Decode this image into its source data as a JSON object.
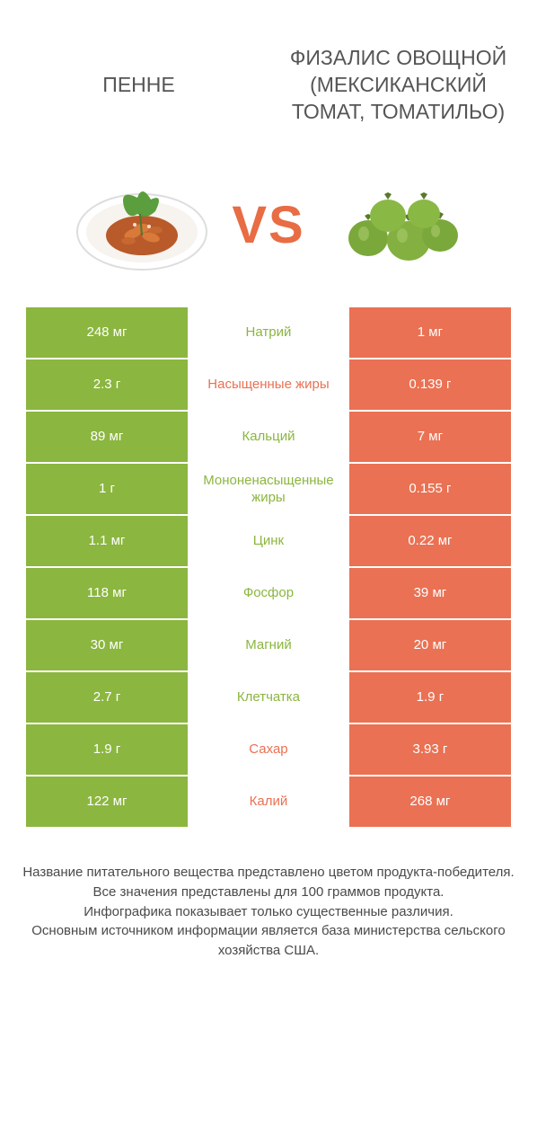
{
  "colors": {
    "left_bg": "#8bb63f",
    "right_bg": "#ea7153",
    "left_text": "#ffffff",
    "right_text": "#ffffff",
    "mid_left_color": "#8bb63f",
    "mid_right_color": "#ea7153",
    "vs_color": "#e86c44",
    "title_color": "#555555",
    "footer_color": "#4a4a4a"
  },
  "header": {
    "left_title": "ПЕННЕ",
    "right_title": "ФИЗАЛИС ОВОЩНОЙ (МЕКСИКАНСКИЙ ТОМАТ, ТОМАТИЛЬО)",
    "vs": "VS"
  },
  "rows": [
    {
      "left": "248 мг",
      "mid": "Натрий",
      "right": "1 мг",
      "winner": "left"
    },
    {
      "left": "2.3 г",
      "mid": "Насыщенные жиры",
      "right": "0.139 г",
      "winner": "right"
    },
    {
      "left": "89 мг",
      "mid": "Кальций",
      "right": "7 мг",
      "winner": "left"
    },
    {
      "left": "1 г",
      "mid": "Мононенасыщенные жиры",
      "right": "0.155 г",
      "winner": "left"
    },
    {
      "left": "1.1 мг",
      "mid": "Цинк",
      "right": "0.22 мг",
      "winner": "left"
    },
    {
      "left": "118 мг",
      "mid": "Фосфор",
      "right": "39 мг",
      "winner": "left"
    },
    {
      "left": "30 мг",
      "mid": "Магний",
      "right": "20 мг",
      "winner": "left"
    },
    {
      "left": "2.7 г",
      "mid": "Клетчатка",
      "right": "1.9 г",
      "winner": "left"
    },
    {
      "left": "1.9 г",
      "mid": "Сахар",
      "right": "3.93 г",
      "winner": "right"
    },
    {
      "left": "122 мг",
      "mid": "Калий",
      "right": "268 мг",
      "winner": "right"
    }
  ],
  "footer": {
    "line1": "Название питательного вещества представлено цветом продукта-победителя.",
    "line2": "Все значения представлены для 100 граммов продукта.",
    "line3": "Инфографика показывает только существенные различия.",
    "line4": "Основным источником информации является база министерства сельского хозяйства США."
  }
}
